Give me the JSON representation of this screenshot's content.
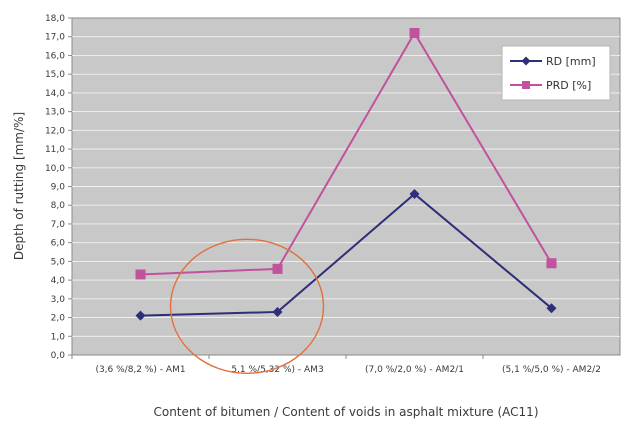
{
  "chart_data": {
    "type": "line",
    "title": "",
    "xlabel": "Content of bitumen / Content of voids in asphalt mixture (AC11)",
    "ylabel": "Depth of rutting [mm/%]",
    "categories": [
      "(3,6 %/8,2 %) - AM1",
      "5,1 %/5,32 %) - AM3",
      "(7,0 %/2,0 %) - AM2/1",
      "(5,1 %/5,0 %) - AM2/2"
    ],
    "ylim": [
      0,
      18
    ],
    "yticks": [
      "0,0",
      "1,0",
      "2,0",
      "3,0",
      "4,0",
      "5,0",
      "6,0",
      "7,0",
      "8,0",
      "9,0",
      "10,0",
      "11,0",
      "12,0",
      "13,0",
      "14,0",
      "15,0",
      "16,0",
      "17,0",
      "18,0"
    ],
    "grid": true,
    "legend_position": "top-right",
    "series": [
      {
        "name": "RD [mm]",
        "values": [
          2.1,
          2.3,
          8.6,
          2.5
        ],
        "color": "#2e2e7a",
        "marker": "diamond"
      },
      {
        "name": "PRD [%]",
        "values": [
          4.3,
          4.6,
          17.2,
          4.9
        ],
        "color": "#c2519e",
        "marker": "square"
      }
    ],
    "annotation": {
      "type": "ellipse",
      "color": "#e2703c",
      "category_span": [
        0,
        1
      ]
    }
  }
}
